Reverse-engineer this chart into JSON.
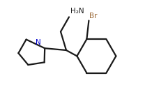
{
  "background_color": "#ffffff",
  "line_color": "#1a1a1a",
  "line_width": 1.6,
  "figsize": [
    2.08,
    1.52
  ],
  "dpi": 100,
  "h2n_label": "H₂N",
  "br_label": "Br",
  "n_label": "N",
  "n_color": "#0000cc",
  "br_color": "#996633",
  "font_size": 7.5
}
